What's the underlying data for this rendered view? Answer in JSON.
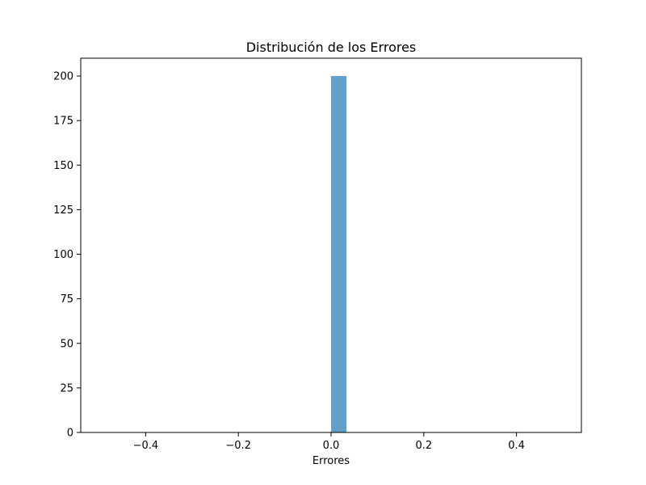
{
  "chart_data": {
    "type": "bar",
    "title": "Distribución de los Errores",
    "xlabel": "Errores",
    "ylabel": "",
    "xlim": [
      -0.54,
      0.54
    ],
    "ylim": [
      0,
      210
    ],
    "bins": [
      {
        "x_start": 0.0,
        "x_end": 0.0333,
        "count": 200
      }
    ],
    "x_ticks": [
      {
        "value": -0.4,
        "label": "−0.4"
      },
      {
        "value": -0.2,
        "label": "−0.2"
      },
      {
        "value": 0.0,
        "label": "0.0"
      },
      {
        "value": 0.2,
        "label": "0.2"
      },
      {
        "value": 0.4,
        "label": "0.4"
      }
    ],
    "y_ticks": [
      {
        "value": 0,
        "label": "0"
      },
      {
        "value": 25,
        "label": "25"
      },
      {
        "value": 50,
        "label": "50"
      },
      {
        "value": 75,
        "label": "75"
      },
      {
        "value": 100,
        "label": "100"
      },
      {
        "value": 125,
        "label": "125"
      },
      {
        "value": 150,
        "label": "150"
      },
      {
        "value": 175,
        "label": "175"
      },
      {
        "value": 200,
        "label": "200"
      }
    ],
    "bar_color": "#1f77b4",
    "bar_opacity": 0.7,
    "grid": false,
    "legend": "none"
  }
}
